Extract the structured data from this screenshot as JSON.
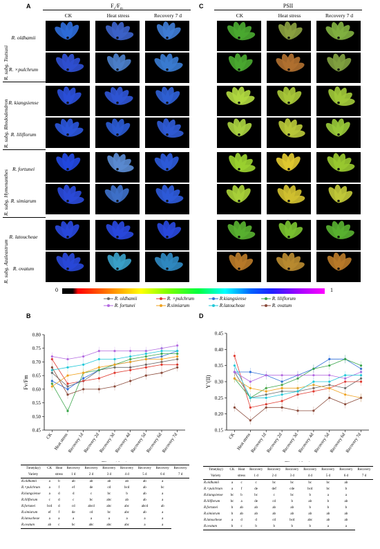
{
  "panels": {
    "A": {
      "letter": "A",
      "title": "Fv/Fm",
      "title_main": "F",
      "title_sub1": "v",
      "title_mid": "/F",
      "title_sub2": "m"
    },
    "C": {
      "letter": "C",
      "title": "PSII"
    },
    "B": {
      "letter": "B"
    },
    "D": {
      "letter": "D"
    }
  },
  "columns": [
    "CK",
    "Heat stress",
    "Recovery 7 d"
  ],
  "species": [
    {
      "name": "R. oldhamii"
    },
    {
      "name": "R. ×pulchrum"
    },
    {
      "name": "R. kiangsiense"
    },
    {
      "name": "R. liliflorum"
    },
    {
      "name": "R. fortunei"
    },
    {
      "name": "R. simiarum"
    },
    {
      "name": "R. latoucheae"
    },
    {
      "name": "R. ovatum"
    }
  ],
  "groups": [
    "R. subg. Tsutsusi",
    "R. subg. Rhododendron",
    "R. subg. Hymenanthes",
    "R. subg. Azaleastrum"
  ],
  "colorbar": {
    "min": "0",
    "max": "1"
  },
  "legend": [
    {
      "name": "R. oldhamii",
      "color": "#6a6a6a",
      "marker": "circle"
    },
    {
      "name": "R. ×pulchrum",
      "color": "#e03a2f",
      "marker": "circle"
    },
    {
      "name": "R.kiangsiense",
      "color": "#2f6fd8",
      "marker": "triangle"
    },
    {
      "name": "R. liliflorum",
      "color": "#3aa64a",
      "marker": "triangle"
    },
    {
      "name": "R. fortunei",
      "color": "#b36ae0",
      "marker": "diamond"
    },
    {
      "name": "R.simiarum",
      "color": "#f0a21e",
      "marker": "triangle"
    },
    {
      "name": "R.latoucheae",
      "color": "#22c8d8",
      "marker": "triangle"
    },
    {
      "name": "R. ovatum",
      "color": "#8a4a3a",
      "marker": "circle"
    }
  ],
  "chart_data": [
    {
      "type": "line",
      "panel": "B",
      "xlabel": "Time(day)",
      "ylabel": "Fv/Fm",
      "categories": [
        "CK",
        "Heat stress",
        "Recovery 1d",
        "Recovery 2d",
        "Recovery 3d",
        "Recovery 4d",
        "Recovery 5d",
        "Recovery 6d",
        "Recovery 7d"
      ],
      "ylim": [
        0.45,
        0.8
      ],
      "yticks": [
        "0.45",
        "0.50",
        "0.55",
        "0.60",
        "0.65",
        "0.70",
        "0.75",
        "0.80"
      ],
      "series": [
        {
          "name": "R. oldhamii",
          "values": [
            0.66,
            0.61,
            0.63,
            0.67,
            0.68,
            0.68,
            0.69,
            0.7,
            0.71
          ]
        },
        {
          "name": "R. ×pulchrum",
          "values": [
            0.71,
            0.62,
            0.63,
            0.64,
            0.66,
            0.67,
            0.68,
            0.69,
            0.69
          ]
        },
        {
          "name": "R.kiangsiense",
          "values": [
            0.63,
            0.6,
            0.64,
            0.67,
            0.69,
            0.7,
            0.71,
            0.72,
            0.74
          ]
        },
        {
          "name": "R. liliflorum",
          "values": [
            0.62,
            0.52,
            0.66,
            0.67,
            0.69,
            0.71,
            0.72,
            0.73,
            0.73
          ]
        },
        {
          "name": "R. fortunei",
          "values": [
            0.72,
            0.71,
            0.72,
            0.74,
            0.74,
            0.74,
            0.74,
            0.75,
            0.76
          ]
        },
        {
          "name": "R.simiarum",
          "values": [
            0.61,
            0.65,
            0.66,
            0.68,
            0.69,
            0.7,
            0.71,
            0.71,
            0.72
          ]
        },
        {
          "name": "R.latoucheae",
          "values": [
            0.67,
            0.68,
            0.69,
            0.71,
            0.71,
            0.72,
            0.73,
            0.74,
            0.74
          ]
        },
        {
          "name": "R. ovatum",
          "values": [
            0.68,
            0.58,
            0.6,
            0.6,
            0.61,
            0.63,
            0.65,
            0.66,
            0.68
          ]
        }
      ]
    },
    {
      "type": "line",
      "panel": "D",
      "xlabel": "Time(day)",
      "ylabel": "Y’(II)",
      "categories": [
        "CK",
        "Heat stress",
        "Recovery 1d",
        "Recovery 2d",
        "Recovery 3d",
        "Recovery 4d",
        "Recovery 5d",
        "Recovery 6d",
        "Recovery 7d"
      ],
      "ylim": [
        0.15,
        0.45
      ],
      "yticks": [
        "0.15",
        "0.20",
        "0.25",
        "0.30",
        "0.35",
        "0.40",
        "0.45"
      ],
      "series": [
        {
          "name": "R. oldhamii",
          "values": [
            0.33,
            0.25,
            0.26,
            0.27,
            0.27,
            0.28,
            0.29,
            0.28,
            0.31
          ]
        },
        {
          "name": "R. ×pulchrum",
          "values": [
            0.38,
            0.22,
            0.23,
            0.24,
            0.26,
            0.27,
            0.28,
            0.3,
            0.3
          ]
        },
        {
          "name": "R.kiangsiense",
          "values": [
            0.33,
            0.33,
            0.32,
            0.3,
            0.32,
            0.34,
            0.37,
            0.37,
            0.34
          ]
        },
        {
          "name": "R. liliflorum",
          "values": [
            0.31,
            0.25,
            0.28,
            0.29,
            0.31,
            0.34,
            0.35,
            0.37,
            0.35
          ]
        },
        {
          "name": "R. fortunei",
          "values": [
            0.33,
            0.3,
            0.32,
            0.32,
            0.32,
            0.32,
            0.32,
            0.31,
            0.33
          ]
        },
        {
          "name": "R.simiarum",
          "values": [
            0.31,
            0.28,
            0.27,
            0.28,
            0.28,
            0.29,
            0.28,
            0.26,
            0.25
          ]
        },
        {
          "name": "R.latoucheae",
          "values": [
            0.35,
            0.25,
            0.25,
            0.26,
            0.27,
            0.3,
            0.3,
            0.32,
            0.32
          ]
        },
        {
          "name": "R. ovatum",
          "values": [
            0.22,
            0.18,
            0.22,
            0.22,
            0.21,
            0.21,
            0.25,
            0.23,
            0.25
          ]
        }
      ]
    }
  ],
  "table_B": {
    "header_top": [
      "Time(day)",
      "CK",
      "Heat",
      "Recovery",
      "Recovery",
      "Recovery",
      "Recovery",
      "Recovery",
      "Recovery",
      "Recovery"
    ],
    "header_bottom": [
      "Variety",
      "",
      "stress",
      "1 d",
      "2 d",
      "3 d",
      "4 d",
      "5 d",
      "6 d",
      "7 d"
    ],
    "rows": [
      [
        "R.oldhamii",
        "a",
        "b",
        "ab",
        "ab",
        "ab",
        "ab",
        "ab",
        "a"
      ],
      [
        "R.×pulchrum",
        "a",
        "f",
        "ef",
        "de",
        "cd",
        "bcd",
        "ab",
        "bc"
      ],
      [
        "R.kiangsiense",
        "a",
        "d",
        "d",
        "c",
        "bc",
        "b",
        "ab",
        "a"
      ],
      [
        "R.liliflorum",
        "c",
        "d",
        "c",
        "bc",
        "abc",
        "ab",
        "ab",
        "a"
      ],
      [
        "R.fortunei",
        "bcd",
        "d",
        "cd",
        "abcd",
        "abc",
        "abc",
        "abcd",
        "ab"
      ],
      [
        "R.simiarum",
        "ef",
        "f",
        "de",
        "cd",
        "bc",
        "abc",
        "ab",
        "a"
      ],
      [
        "R.latoucheae",
        "a",
        "a",
        "a",
        "a",
        "a",
        "a",
        "a",
        "a"
      ],
      [
        "R.ovatum",
        "ab",
        "c",
        "bc",
        "abc",
        "abc",
        "abc",
        "a",
        "a"
      ]
    ]
  },
  "table_D": {
    "header_top": [
      "Time(day)",
      "CK",
      "Heat",
      "Recovery",
      "Recovery",
      "Recovery",
      "Recovery",
      "Recovery",
      "Recovery",
      "Recovery"
    ],
    "header_bottom": [
      "Variety",
      "",
      "stress",
      "1 d",
      "2 d",
      "3 d",
      "4 d",
      "5 d",
      "6 d",
      "7 d"
    ],
    "rows": [
      [
        "R.oldhamii",
        "a",
        "c",
        "c",
        "bc",
        "bc",
        "bc",
        "bc",
        "ab"
      ],
      [
        "R.×pulchrum",
        "a",
        "f",
        "de",
        "def",
        "cde",
        "bcd",
        "bc",
        "b"
      ],
      [
        "R.kiangsiense",
        "bc",
        "b",
        "bc",
        "c",
        "bc",
        "b",
        "a",
        "a"
      ],
      [
        "R.liliflorum",
        "bc",
        "a",
        "de",
        "cd",
        "b",
        "ab",
        "b",
        "ab"
      ],
      [
        "R.fortunei",
        "b",
        "ab",
        "ab",
        "ab",
        "ab",
        "b",
        "b",
        "b"
      ],
      [
        "R.simiarum",
        "b",
        "ab",
        "ab",
        "ab",
        "ab",
        "ab",
        "ab",
        "ab"
      ],
      [
        "R.latoucheae",
        "a",
        "d",
        "d",
        "cd",
        "bcd",
        "abc",
        "ab",
        "ab"
      ],
      [
        "R.ovatum",
        "b",
        "c",
        "b",
        "b",
        "b",
        "b",
        "a",
        "a"
      ]
    ]
  }
}
